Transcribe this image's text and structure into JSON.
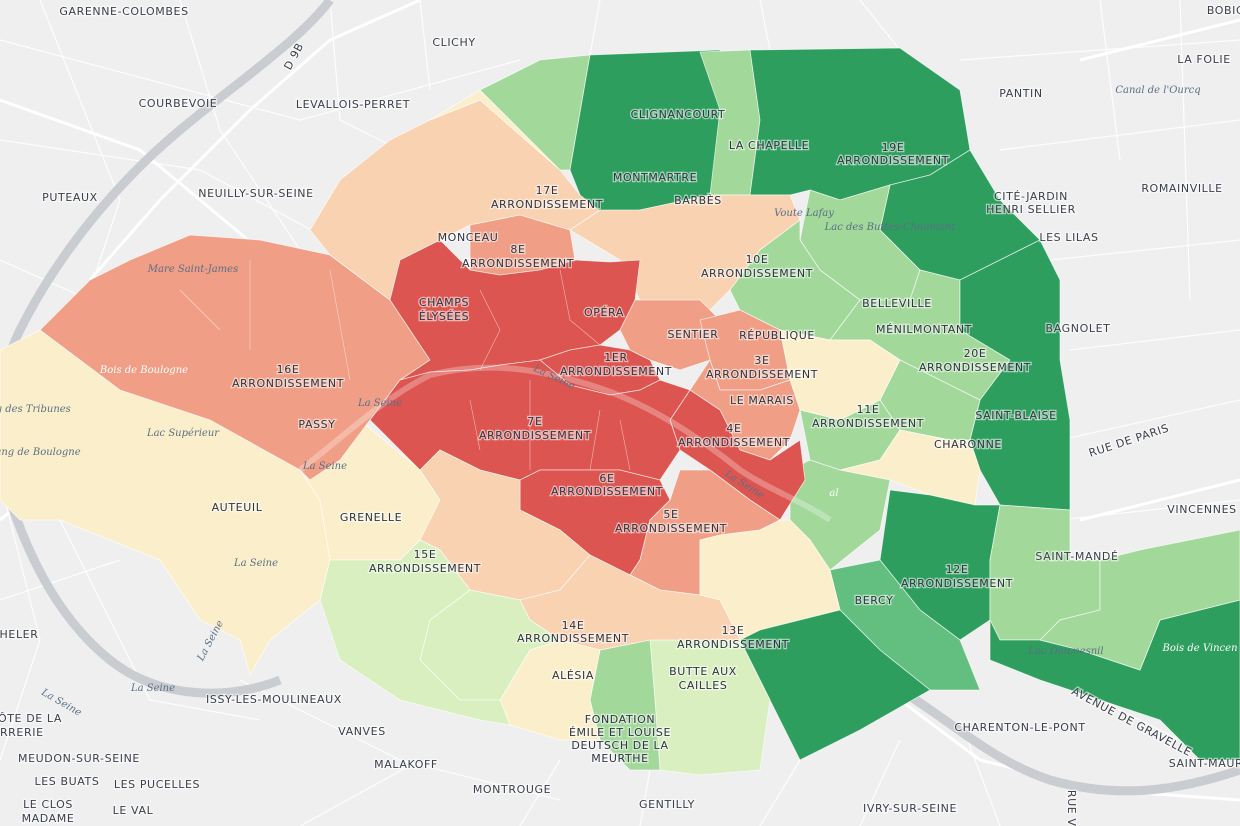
{
  "colors": {
    "background": "#efefef",
    "scale": [
      "#fbefcb",
      "#f9d2b2",
      "#f09e86",
      "#dd5550",
      "#d9efbf",
      "#a3d89b",
      "#63bf7f",
      "#2e9e5e"
    ],
    "seine": "#c9ccd0"
  },
  "map_labels": {
    "garenne_colombes": "GARENNE-COLOMBES",
    "courbevoie": "COURBEVOIE",
    "levallois": "LEVALLOIS-PERRET",
    "clichy": "CLICHY",
    "puteaux": "PUTEAUX",
    "neuilly": "NEUILLY-SUR-SEINE",
    "pantin": "PANTIN",
    "la_folie": "LA FOLIE",
    "bobigny": "BOBIG",
    "romainville": "ROMAINVILLE",
    "cite_jardin": "CITÉ-JARDIN",
    "henri_sellier": "HENRI SELLIER",
    "les_lilas": "LES LILAS",
    "bagnolet": "BAGNOLET",
    "vincennes": "VINCENNES",
    "saint_mande": "SAINT-MANDÉ",
    "charenton": "CHARENTON-LE-PONT",
    "saint_maur": "SAINT-MAUR",
    "ivry": "IVRY-SUR-SEINE",
    "gentilly": "GENTILLY",
    "montrouge": "MONTROUGE",
    "malakoff": "MALAKOFF",
    "vanves": "VANVES",
    "issy": "ISSY-LES-MOULINEAUX",
    "meudon": "MEUDON-SUR-SEINE",
    "les_buats": "LES BUATS",
    "les_pucelles": "LES PUCELLES",
    "le_clos": "LE CLOS",
    "madame": "MADAME",
    "le_val": "LE VAL",
    "heler": "HELER",
    "cote_de_la": "ÔTE DE LA",
    "errerie": "ERRERIE",
    "clignancourt": "CLIGNANCOURT",
    "la_chapelle": "LA CHAPELLE",
    "montmartre": "MONTMARTRE",
    "barbes": "BARBÈS",
    "arr19_a": "19E",
    "arr19_b": "ARRONDISSEMENT",
    "arr17_a": "17E",
    "arr17_b": "ARRONDISSEMENT",
    "monceau": "MONCEAU",
    "arr8_a": "8E",
    "arr8_b": "ARRONDISSEMENT",
    "arr10_a": "10E",
    "arr10_b": "ARRONDISSEMENT",
    "champs_a": "CHAMPS",
    "champs_b": "ÉLYSÉES",
    "opera": "OPÉRA",
    "sentier": "SENTIER",
    "republique": "RÉPUBLIQUE",
    "belleville": "BELLEVILLE",
    "menilmontant": "MÉNILMONTANT",
    "arr20_a": "20E",
    "arr20_b": "ARRONDISSEMENT",
    "arr1_a": "1ER",
    "arr1_b": "ARRONDISSEMENT",
    "arr3_a": "3E",
    "arr3_b": "ARRONDISSEMENT",
    "arr16_a": "16E",
    "arr16_b": "ARRONDISSEMENT",
    "passy": "PASSY",
    "le_marais": "LE MARAIS",
    "arr11_a": "11E",
    "arr11_b": "ARRONDISSEMENT",
    "saint_blaise": "SAINT-BLAISE",
    "charonne": "CHARONNE",
    "arr7_a": "7E",
    "arr7_b": "ARRONDISSEMENT",
    "arr4_a": "4E",
    "arr4_b": "ARRONDISSEMENT",
    "arr6_a": "6E",
    "arr6_b": "ARRONDISSEMENT",
    "arr5_a": "5E",
    "arr5_b": "ARRONDISSEMENT",
    "auteuil": "AUTEUIL",
    "grenelle": "GRENELLE",
    "arr15_a": "15E",
    "arr15_b": "ARRONDISSEMENT",
    "arr12_a": "12E",
    "arr12_b": "ARRONDISSEMENT",
    "bercy": "BERCY",
    "arr14_a": "14E",
    "arr14_b": "ARRONDISSEMENT",
    "arr13_a": "13E",
    "arr13_b": "ARRONDISSEMENT",
    "alesia": "ALÉSIA",
    "butte_a": "BUTTE AUX",
    "butte_b": "CAILLES",
    "fondation_a": "FONDATION",
    "fondation_b": "ÉMILE ET LOUISE",
    "fondation_c": "DEUTSCH DE LA",
    "fondation_d": "MEURTHE",
    "rue_de_paris": "RUE DE PARIS",
    "avenue_gravelle": "AVENUE DE GRAVELLE",
    "rue_ve": "RUE VE",
    "d9b": "D 9B"
  },
  "water_labels": {
    "canal_ourcq": "Canal de l'Ourcq",
    "voute_lafay": "Voute Lafay",
    "buttes_chaumont": "Lac des Buttes-Chaumont",
    "mare_st_james": "Mare Saint-James",
    "bois_boulogne": "Bois de Boulogne",
    "seine_1": "La Seine",
    "seine_2": "La Seine",
    "seine_3": "La Seine",
    "seine_4": "La Seine",
    "seine_5": "La Seine",
    "seine_6": "La Seine",
    "seine_7": "La Seine",
    "seine_8": "La Seine",
    "tribunes": "ng des Tribunes",
    "lac_superieur": "Lac Supérieur",
    "etang_boulogne": "tang de Boulogne",
    "lac_daumesnil": "Lac Daumesnil",
    "bois_vincennes": "Bois de Vincen",
    "al": "al"
  }
}
